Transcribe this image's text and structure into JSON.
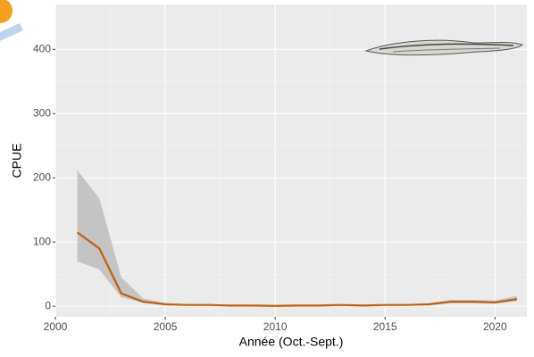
{
  "chart_data": {
    "type": "line",
    "x_label": "Année (Oct.-Sept.)",
    "y_label": "CPUE",
    "x": [
      2001,
      2002,
      2003,
      2004,
      2005,
      2006,
      2007,
      2008,
      2009,
      2010,
      2011,
      2012,
      2013,
      2014,
      2015,
      2016,
      2017,
      2018,
      2019,
      2020,
      2021
    ],
    "series": [
      {
        "color": "#c0600a",
        "band_color": "#bdbdbd",
        "values": [
          115,
          90,
          20,
          7,
          3,
          2,
          2,
          1,
          1,
          0.5,
          1,
          1,
          2,
          1,
          2,
          2,
          3,
          7,
          7,
          6,
          11
        ],
        "lower": [
          70,
          57,
          14,
          5,
          2,
          1,
          1,
          0.5,
          0.5,
          0,
          0.5,
          0.5,
          1,
          0.5,
          1,
          1,
          2,
          5,
          5,
          4,
          8
        ],
        "upper": [
          212,
          168,
          45,
          12,
          5,
          3,
          3,
          2,
          2,
          1.5,
          2,
          2,
          3,
          2,
          3,
          3,
          5,
          10,
          10,
          9,
          16
        ]
      }
    ],
    "xlim": [
      2000,
      2021.45
    ],
    "xticks": [
      2000,
      2005,
      2010,
      2015,
      2020
    ],
    "ylim": [
      -16.5,
      470
    ],
    "yticks": [
      0,
      100,
      200,
      300,
      400
    ],
    "grid": true
  }
}
